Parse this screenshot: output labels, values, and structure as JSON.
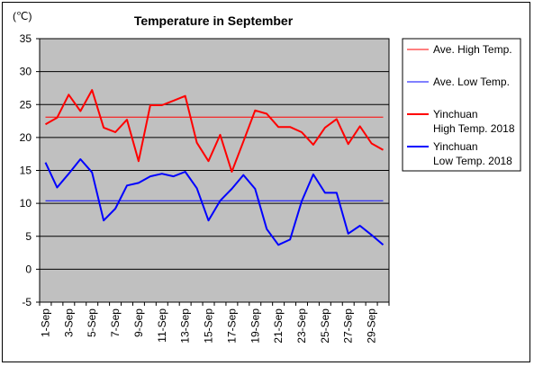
{
  "chart_data": {
    "type": "line",
    "title": "Temperature in September",
    "unit_label": "(℃)",
    "ylim": [
      -5,
      35
    ],
    "y_ticks": [
      "-5",
      "0",
      "5",
      "10",
      "15",
      "20",
      "25",
      "30",
      "35"
    ],
    "x": [
      1,
      2,
      3,
      4,
      5,
      6,
      7,
      8,
      9,
      10,
      11,
      12,
      13,
      14,
      15,
      16,
      17,
      18,
      19,
      20,
      21,
      22,
      23,
      24,
      25,
      26,
      27,
      28,
      29,
      30
    ],
    "x_tick_labels": [
      "1-Sep",
      "3-Sep",
      "5-Sep",
      "7-Sep",
      "9-Sep",
      "11-Sep",
      "13-Sep",
      "15-Sep",
      "17-Sep",
      "19-Sep",
      "21-Sep",
      "23-Sep",
      "25-Sep",
      "27-Sep",
      "29-Sep"
    ],
    "grid": "horizontal",
    "plot_background": "#c0c0c0",
    "legend_position": "right",
    "series": [
      {
        "name": "Ave. High Temp.",
        "color": "#ff0000",
        "width": 1,
        "values": [
          23.1,
          23.1,
          23.1,
          23.1,
          23.1,
          23.1,
          23.1,
          23.1,
          23.1,
          23.1,
          23.1,
          23.1,
          23.1,
          23.1,
          23.1,
          23.1,
          23.1,
          23.1,
          23.1,
          23.1,
          23.1,
          23.1,
          23.1,
          23.1,
          23.1,
          23.1,
          23.1,
          23.1,
          23.1,
          23.1
        ]
      },
      {
        "name": "Ave. Low Temp.",
        "color": "#0000ff",
        "width": 1,
        "values": [
          10.4,
          10.4,
          10.4,
          10.4,
          10.4,
          10.4,
          10.4,
          10.4,
          10.4,
          10.4,
          10.4,
          10.4,
          10.4,
          10.4,
          10.4,
          10.4,
          10.4,
          10.4,
          10.4,
          10.4,
          10.4,
          10.4,
          10.4,
          10.4,
          10.4,
          10.4,
          10.4,
          10.4,
          10.4,
          10.4
        ]
      },
      {
        "name": "Yinchuan High Temp. 2018",
        "legend_lines": [
          "Yinchuan",
          "High Temp. 2018"
        ],
        "color": "#ff0000",
        "width": 2,
        "values": [
          22,
          23,
          26.5,
          24,
          27.2,
          21.5,
          20.8,
          22.7,
          16.4,
          24.9,
          24.9,
          25.6,
          26.3,
          19.2,
          16.4,
          20.4,
          14.8,
          19.4,
          24.1,
          23.6,
          21.6,
          21.6,
          20.8,
          18.9,
          21.5,
          22.8,
          19,
          21.7,
          19.1,
          18.1
        ]
      },
      {
        "name": "Yinchuan Low Temp. 2018",
        "legend_lines": [
          "Yinchuan",
          "Low Temp. 2018"
        ],
        "color": "#0000ff",
        "width": 2,
        "values": [
          16.2,
          12.4,
          14.5,
          16.7,
          14.7,
          7.4,
          9.2,
          12.7,
          13.1,
          14.1,
          14.5,
          14.1,
          14.8,
          12.3,
          7.4,
          10.4,
          12.2,
          14.3,
          12.2,
          6.1,
          3.7,
          4.5,
          10.3,
          14.4,
          11.6,
          11.6,
          5.4,
          6.6,
          5.2,
          3.7
        ]
      }
    ]
  }
}
